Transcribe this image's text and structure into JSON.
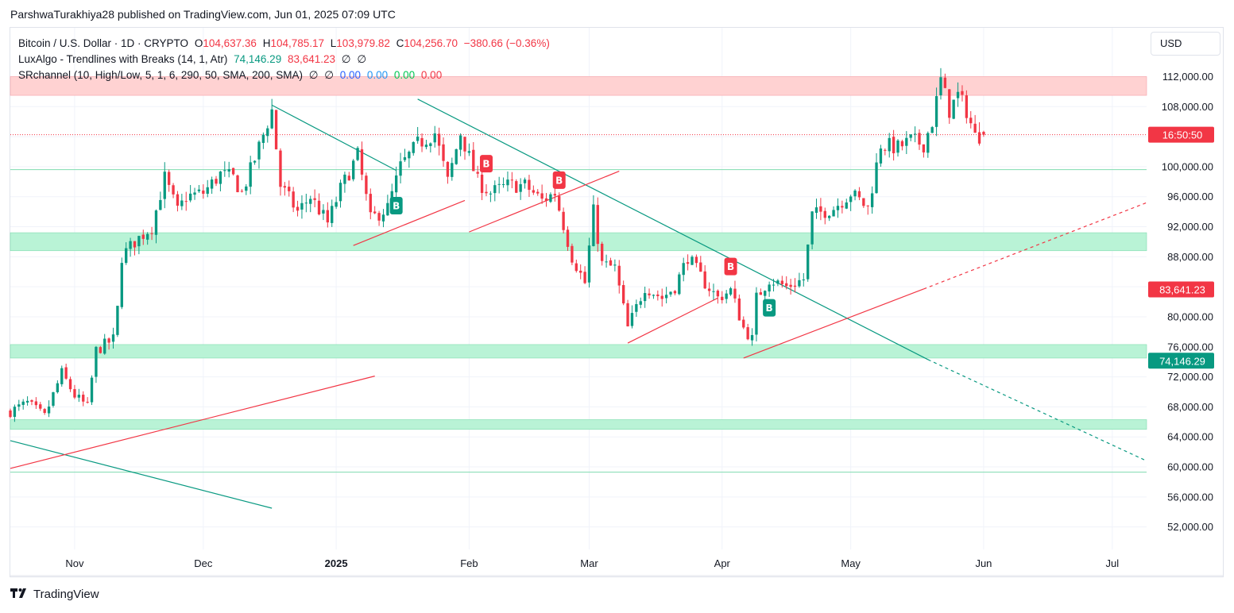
{
  "publisher_line": "ParshwaTurakhiya28 published on TradingView.com, Jun 01, 2025 07:09 UTC",
  "legend": {
    "symbol": "Bitcoin / U.S. Dollar · 1D · CRYPTO",
    "open_label": "O",
    "open": "104,637.36",
    "high_label": "H",
    "high": "104,785.17",
    "low_label": "L",
    "low": "103,979.82",
    "close_label": "C",
    "close": "104,256.70",
    "change": "−380.66 (−0.36%)",
    "ind1_name": "LuxAlgo - Trendlines with Breaks (14, 1, Atr)",
    "ind1_v1": "74,146.29",
    "ind1_v2": "83,641.23",
    "ind1_v3": "∅",
    "ind1_v4": "∅",
    "ind2_name": "SRchannel (10, High/Low, 5, 1, 6, 290, 50, SMA, 200, SMA)",
    "ind2_v1": "∅",
    "ind2_v2": "∅",
    "ind2_v3": "0.00",
    "ind2_v4": "0.00",
    "ind2_v5": "0.00",
    "ind2_v6": "0.00"
  },
  "currency_button": "USD",
  "footer_brand": "TradingView",
  "colors": {
    "up": "#089981",
    "down": "#f23645",
    "green_zone": "#b9f3d6",
    "red_zone": "#ffd2d2",
    "trend_down": "#089981",
    "trend_up": "#f23645",
    "grid": "#f0f3fa"
  },
  "chart_data": {
    "type": "candlestick",
    "title": "Bitcoin / U.S. Dollar · 1D · CRYPTO",
    "x_ticks": [
      {
        "date": "2024-11-01",
        "label": "Nov"
      },
      {
        "date": "2024-12-01",
        "label": "Dec"
      },
      {
        "date": "2025-01-01",
        "label": "2025",
        "bold": true
      },
      {
        "date": "2025-02-01",
        "label": "Feb"
      },
      {
        "date": "2025-03-01",
        "label": "Mar"
      },
      {
        "date": "2025-04-01",
        "label": "Apr"
      },
      {
        "date": "2025-05-01",
        "label": "May"
      },
      {
        "date": "2025-06-01",
        "label": "Jun"
      },
      {
        "date": "2025-07-01",
        "label": "Jul"
      }
    ],
    "y_ticks": [
      "112,000.00",
      "108,000.00",
      "104,000.00",
      "100,000.00",
      "96,000.00",
      "92,000.00",
      "88,000.00",
      "84,000.00",
      "80,000.00",
      "76,000.00",
      "72,000.00",
      "68,000.00",
      "64,000.00",
      "60,000.00",
      "56,000.00",
      "52,000.00"
    ],
    "y_tick_values": [
      112000,
      108000,
      104000,
      100000,
      96000,
      92000,
      88000,
      84000,
      80000,
      76000,
      72000,
      68000,
      64000,
      60000,
      56000,
      52000
    ],
    "ylim": [
      49000,
      118500
    ],
    "xlim": [
      "2024-10-17",
      "2025-07-09"
    ],
    "close_path": [
      {
        "date": "2024-10-17",
        "value": 67400
      },
      {
        "date": "2024-10-21",
        "value": 68500
      },
      {
        "date": "2024-10-25",
        "value": 66700
      },
      {
        "date": "2024-10-29",
        "value": 72500
      },
      {
        "date": "2024-11-01",
        "value": 69500
      },
      {
        "date": "2024-11-04",
        "value": 68000
      },
      {
        "date": "2024-11-06",
        "value": 75500
      },
      {
        "date": "2024-11-10",
        "value": 77000
      },
      {
        "date": "2024-11-11",
        "value": 81000
      },
      {
        "date": "2024-11-12",
        "value": 88000
      },
      {
        "date": "2024-11-15",
        "value": 90000
      },
      {
        "date": "2024-11-19",
        "value": 92000
      },
      {
        "date": "2024-11-22",
        "value": 98500
      },
      {
        "date": "2024-11-25",
        "value": 94000
      },
      {
        "date": "2024-11-27",
        "value": 96000
      },
      {
        "date": "2024-12-01",
        "value": 96500
      },
      {
        "date": "2024-12-05",
        "value": 99000
      },
      {
        "date": "2024-12-08",
        "value": 98500
      },
      {
        "date": "2024-12-10",
        "value": 96500
      },
      {
        "date": "2024-12-13",
        "value": 101000
      },
      {
        "date": "2024-12-17",
        "value": 107500
      },
      {
        "date": "2024-12-19",
        "value": 97500
      },
      {
        "date": "2024-12-23",
        "value": 94000
      },
      {
        "date": "2024-12-26",
        "value": 96000
      },
      {
        "date": "2024-12-30",
        "value": 92500
      },
      {
        "date": "2025-01-02",
        "value": 97000
      },
      {
        "date": "2025-01-06",
        "value": 101500
      },
      {
        "date": "2025-01-09",
        "value": 93000
      },
      {
        "date": "2025-01-13",
        "value": 94500
      },
      {
        "date": "2025-01-16",
        "value": 100000
      },
      {
        "date": "2025-01-20",
        "value": 103000
      },
      {
        "date": "2025-01-24",
        "value": 104500
      },
      {
        "date": "2025-01-27",
        "value": 98000
      },
      {
        "date": "2025-01-30",
        "value": 104500
      },
      {
        "date": "2025-02-03",
        "value": 98000
      },
      {
        "date": "2025-02-06",
        "value": 96500
      },
      {
        "date": "2025-02-10",
        "value": 97500
      },
      {
        "date": "2025-02-14",
        "value": 97500
      },
      {
        "date": "2025-02-18",
        "value": 95500
      },
      {
        "date": "2025-02-21",
        "value": 96500
      },
      {
        "date": "2025-02-25",
        "value": 88000
      },
      {
        "date": "2025-02-28",
        "value": 84500
      },
      {
        "date": "2025-03-02",
        "value": 94000
      },
      {
        "date": "2025-03-04",
        "value": 87000
      },
      {
        "date": "2025-03-07",
        "value": 86500
      },
      {
        "date": "2025-03-10",
        "value": 78500
      },
      {
        "date": "2025-03-14",
        "value": 84000
      },
      {
        "date": "2025-03-18",
        "value": 82500
      },
      {
        "date": "2025-03-21",
        "value": 84000
      },
      {
        "date": "2025-03-24",
        "value": 88000
      },
      {
        "date": "2025-03-28",
        "value": 84500
      },
      {
        "date": "2025-03-31",
        "value": 82500
      },
      {
        "date": "2025-04-03",
        "value": 83500
      },
      {
        "date": "2025-04-06",
        "value": 78500
      },
      {
        "date": "2025-04-08",
        "value": 77000
      },
      {
        "date": "2025-04-09",
        "value": 82500
      },
      {
        "date": "2025-04-12",
        "value": 85000
      },
      {
        "date": "2025-04-16",
        "value": 84000
      },
      {
        "date": "2025-04-20",
        "value": 85000
      },
      {
        "date": "2025-04-22",
        "value": 93500
      },
      {
        "date": "2025-04-27",
        "value": 94500
      },
      {
        "date": "2025-05-01",
        "value": 96500
      },
      {
        "date": "2025-05-05",
        "value": 94500
      },
      {
        "date": "2025-05-08",
        "value": 103000
      },
      {
        "date": "2025-05-12",
        "value": 102500
      },
      {
        "date": "2025-05-15",
        "value": 103500
      },
      {
        "date": "2025-05-18",
        "value": 103000
      },
      {
        "date": "2025-05-20",
        "value": 106000
      },
      {
        "date": "2025-05-22",
        "value": 111500
      },
      {
        "date": "2025-05-24",
        "value": 107500
      },
      {
        "date": "2025-05-26",
        "value": 109500
      },
      {
        "date": "2025-05-28",
        "value": 107500
      },
      {
        "date": "2025-05-30",
        "value": 104000
      },
      {
        "date": "2025-06-01",
        "value": 104256.7
      }
    ],
    "last_candle": {
      "date": "2025-06-01",
      "open": 104637.36,
      "high": 104785.17,
      "low": 103979.82,
      "close": 104256.7
    },
    "support_resistance_zones": [
      {
        "from": 109500,
        "to": 112000,
        "color": "red"
      },
      {
        "from": 88800,
        "to": 91200,
        "color": "green"
      },
      {
        "from": 74500,
        "to": 76300,
        "color": "green"
      },
      {
        "from": 65000,
        "to": 66300,
        "color": "green"
      }
    ],
    "horizontal_lines": [
      {
        "value": 99600,
        "color": "green"
      },
      {
        "value": 59300,
        "color": "green"
      },
      {
        "value": 104256.7,
        "color": "red",
        "style": "dotted"
      }
    ],
    "trendlines": [
      {
        "color": "green",
        "from": {
          "date": "2024-12-17",
          "value": 108200
        },
        "to": {
          "date": "2025-01-15",
          "value": 99500
        }
      },
      {
        "color": "green",
        "from": {
          "date": "2025-01-20",
          "value": 109000
        },
        "to": {
          "date": "2025-05-19",
          "value": 74300
        }
      },
      {
        "color": "green",
        "dashed": true,
        "from": {
          "date": "2025-05-19",
          "value": 74300
        },
        "to": {
          "date": "2025-07-09",
          "value": 60800
        }
      },
      {
        "color": "green",
        "from": {
          "date": "2024-10-17",
          "value": 63500
        },
        "to": {
          "date": "2024-12-17",
          "value": 54500
        }
      },
      {
        "color": "red",
        "from": {
          "date": "2025-01-05",
          "value": 89500
        },
        "to": {
          "date": "2025-01-31",
          "value": 95500
        }
      },
      {
        "color": "red",
        "from": {
          "date": "2025-02-01",
          "value": 91300
        },
        "to": {
          "date": "2025-03-08",
          "value": 99400
        }
      },
      {
        "color": "red",
        "from": {
          "date": "2025-03-10",
          "value": 76500
        },
        "to": {
          "date": "2025-03-31",
          "value": 82500
        }
      },
      {
        "color": "red",
        "from": {
          "date": "2025-04-06",
          "value": 74500
        },
        "to": {
          "date": "2025-05-18",
          "value": 83700
        }
      },
      {
        "color": "red",
        "dashed": true,
        "from": {
          "date": "2025-05-18",
          "value": 83700
        },
        "to": {
          "date": "2025-07-09",
          "value": 95200
        }
      },
      {
        "color": "red",
        "from": {
          "date": "2024-10-17",
          "value": 59800
        },
        "to": {
          "date": "2025-01-10",
          "value": 72100
        }
      }
    ],
    "break_markers": [
      {
        "label": "B",
        "color": "green",
        "date": "2025-01-15",
        "value": 94800
      },
      {
        "label": "B",
        "color": "red",
        "date": "2025-02-05",
        "value": 100400
      },
      {
        "label": "B",
        "color": "red",
        "date": "2025-02-22",
        "value": 98200
      },
      {
        "label": "B",
        "color": "red",
        "date": "2025-04-03",
        "value": 86700
      },
      {
        "label": "B",
        "color": "green",
        "date": "2025-04-12",
        "value": 81200
      }
    ],
    "price_labels": [
      {
        "text": "16:50:50",
        "value": 104256.7,
        "color": "red",
        "note": "countdown"
      },
      {
        "text": "83,641.23",
        "value": 83641.23,
        "color": "red"
      },
      {
        "text": "74,146.29",
        "value": 74146.29,
        "color": "green"
      }
    ]
  }
}
